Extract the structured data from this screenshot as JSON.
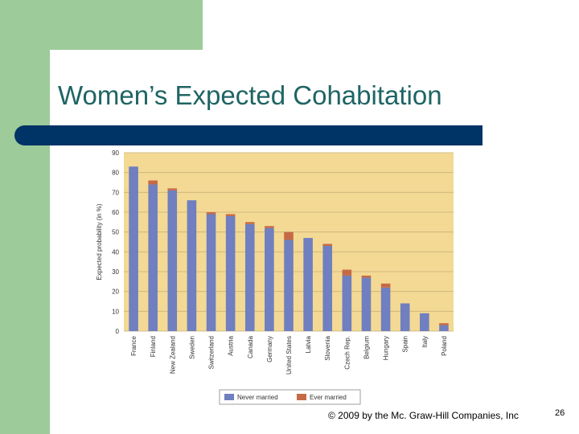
{
  "slide": {
    "title": "Women’s Expected Cohabitation",
    "footer": "© 2009 by the Mc. Graw-Hill Companies, Inc",
    "page_number": "26"
  },
  "colors": {
    "background_plot": "#f3d994",
    "never_married": "#6f7fbf",
    "ever_married": "#c66a45",
    "gridline": "#c9b27a",
    "accent_green": "#9dcb9a",
    "title_rule": "#003366",
    "title_text": "#1f6464"
  },
  "chart_data": {
    "type": "bar",
    "stacked": true,
    "title": "",
    "xlabel": "",
    "ylabel": "Expected probability (in %)",
    "ylim": [
      0,
      90
    ],
    "yticks": [
      0,
      10,
      20,
      30,
      40,
      50,
      60,
      70,
      80,
      90
    ],
    "grid": true,
    "legend": "bottom",
    "categories": [
      "France",
      "Finland",
      "New Zealand",
      "Sweden",
      "Switzerland",
      "Austria",
      "Canada",
      "Germany",
      "United States",
      "Latvia",
      "Slovenia",
      "Czech Rep.",
      "Belgium",
      "Hungary",
      "Spain",
      "Italy",
      "Poland"
    ],
    "series": [
      {
        "name": "Never married",
        "values": [
          83,
          74,
          71,
          66,
          59,
          58,
          54,
          52,
          46,
          47,
          43,
          28,
          27,
          22,
          14,
          9,
          3
        ]
      },
      {
        "name": "Ever married",
        "values": [
          0,
          2,
          1,
          0,
          1,
          1,
          1,
          1,
          4,
          0,
          1,
          3,
          1,
          2,
          0,
          0,
          1
        ]
      }
    ]
  }
}
